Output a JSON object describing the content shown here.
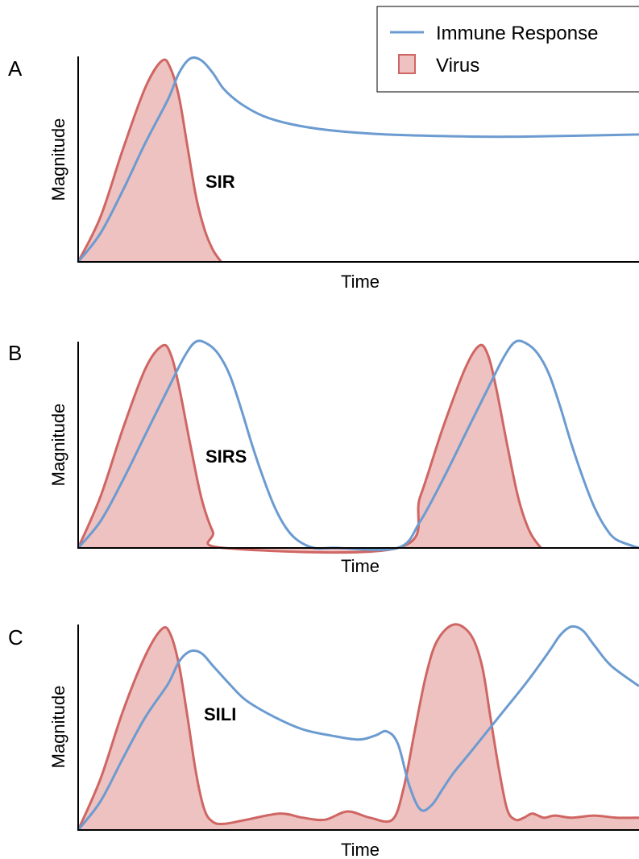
{
  "legend": {
    "items": [
      {
        "label": "Immune Response",
        "kind": "line",
        "color": "#6b9bd0"
      },
      {
        "label": "Virus",
        "kind": "fill",
        "color": "#cf6663",
        "fill": "#edc2c1"
      }
    ]
  },
  "colors": {
    "immune": "#6b9bd0",
    "virus_stroke": "#cf6663",
    "virus_fill": "#edc2c1",
    "axis": "#000000"
  },
  "chart_data": [
    {
      "type": "area",
      "panel_letter": "A",
      "annotation": "SIR",
      "xlabel": "Time",
      "ylabel": "Magnitude",
      "xlim": [
        0,
        100
      ],
      "ylim": [
        0,
        100
      ],
      "series": [
        {
          "name": "Virus",
          "style": "filled",
          "x": [
            0,
            4,
            8,
            12,
            15,
            16.5,
            18,
            19.5,
            21,
            22.5,
            24,
            25.5
          ],
          "y": [
            0,
            22,
            55,
            85,
            98,
            94,
            80,
            56,
            32,
            16,
            6,
            0
          ]
        },
        {
          "name": "Immune Response",
          "style": "line",
          "x": [
            0,
            4,
            8,
            12,
            16,
            18,
            20,
            22,
            24,
            26,
            29,
            33,
            38,
            45,
            55,
            70,
            80,
            100
          ],
          "y": [
            0,
            14,
            35,
            58,
            79,
            92,
            99,
            98,
            92,
            84,
            77,
            71,
            67,
            64,
            62,
            61,
            61,
            62
          ]
        }
      ]
    },
    {
      "type": "area",
      "panel_letter": "B",
      "annotation": "SIRS",
      "xlabel": "Time",
      "ylabel": "Magnitude",
      "xlim": [
        0,
        100
      ],
      "ylim": [
        0,
        100
      ],
      "series": [
        {
          "name": "Virus",
          "style": "filled",
          "x": [
            0,
            4,
            8,
            12,
            15,
            16.5,
            18,
            20,
            22,
            24,
            26,
            57,
            61,
            65,
            69,
            71.5,
            73,
            74.5,
            76.5,
            78.5,
            80.5,
            82.5
          ],
          "y": [
            0,
            25,
            58,
            87,
            98,
            94,
            78,
            50,
            24,
            8,
            0,
            0,
            25,
            58,
            87,
            98,
            94,
            78,
            50,
            24,
            8,
            0
          ]
        },
        {
          "name": "Immune Response",
          "style": "line",
          "x": [
            0,
            4,
            8,
            12,
            16,
            19,
            21,
            23,
            25,
            27,
            29,
            31,
            33,
            35,
            37,
            39,
            42,
            45,
            46,
            57,
            61,
            65,
            69,
            73,
            76,
            78,
            80,
            82,
            84,
            86,
            88,
            90,
            92,
            94,
            96,
            100
          ],
          "y": [
            0,
            13,
            33,
            55,
            77,
            93,
            100,
            99,
            94,
            84,
            68,
            50,
            34,
            20,
            10,
            4,
            0,
            0,
            0,
            0,
            13,
            33,
            55,
            77,
            93,
            100,
            99,
            94,
            84,
            68,
            50,
            34,
            20,
            10,
            4,
            0
          ]
        }
      ]
    },
    {
      "type": "area",
      "panel_letter": "C",
      "annotation": "SILI",
      "xlabel": "Time",
      "ylabel": "Magnitude",
      "xlim": [
        0,
        100
      ],
      "ylim": [
        0,
        100
      ],
      "series": [
        {
          "name": "Virus",
          "style": "filled",
          "x": [
            0,
            4,
            8,
            12,
            15,
            16.5,
            18,
            19.5,
            21,
            22.5,
            24,
            26,
            30,
            36,
            40,
            44,
            48,
            52,
            56,
            58,
            60,
            62,
            64,
            67,
            70,
            72,
            73.5,
            75,
            76.5,
            78,
            79.5,
            81,
            83,
            85,
            88,
            92,
            96,
            100
          ],
          "y": [
            0,
            25,
            58,
            85,
            98,
            95,
            80,
            55,
            28,
            10,
            4,
            3,
            5,
            8,
            6,
            5,
            9,
            6,
            5,
            20,
            48,
            75,
            92,
            100,
            95,
            80,
            55,
            30,
            10,
            5,
            6,
            8,
            6,
            7,
            6,
            7,
            6,
            6
          ]
        },
        {
          "name": "Immune Response",
          "style": "line",
          "x": [
            0,
            4,
            8,
            12,
            16,
            18,
            20,
            22,
            24,
            27,
            30,
            35,
            40,
            45,
            50,
            53,
            55,
            57,
            59,
            61,
            63,
            65,
            67,
            70,
            75,
            80,
            84,
            86,
            88,
            90,
            92,
            95,
            100
          ],
          "y": [
            0,
            14,
            35,
            55,
            71,
            82,
            87,
            86,
            80,
            71,
            63,
            55,
            49,
            46,
            44,
            46,
            48,
            42,
            22,
            10,
            12,
            20,
            28,
            38,
            55,
            72,
            87,
            95,
            99,
            97,
            90,
            80,
            70
          ]
        }
      ]
    }
  ]
}
